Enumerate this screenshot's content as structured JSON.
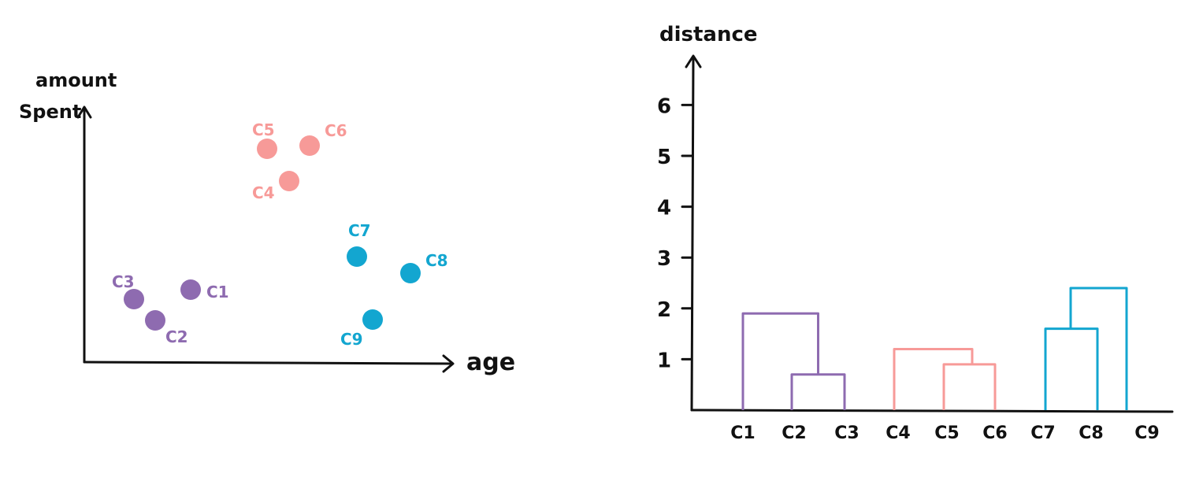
{
  "colors": {
    "purple": "#8E6BB0",
    "pink": "#F79A98",
    "cyan": "#13A6D0",
    "ink": "#111111"
  },
  "scatter": {
    "y_label_line1": "amount",
    "y_label_line2": "Spent",
    "x_label": "age",
    "points": [
      {
        "id": "c1",
        "label": "C1",
        "cluster": "purple"
      },
      {
        "id": "c2",
        "label": "C2",
        "cluster": "purple"
      },
      {
        "id": "c3",
        "label": "C3",
        "cluster": "purple"
      },
      {
        "id": "c4",
        "label": "C4",
        "cluster": "pink"
      },
      {
        "id": "c5",
        "label": "C5",
        "cluster": "pink"
      },
      {
        "id": "c6",
        "label": "C6",
        "cluster": "pink"
      },
      {
        "id": "c7",
        "label": "C7",
        "cluster": "cyan"
      },
      {
        "id": "c8",
        "label": "C8",
        "cluster": "cyan"
      },
      {
        "id": "c9",
        "label": "C9",
        "cluster": "cyan"
      }
    ]
  },
  "dendrogram": {
    "y_label": "distance",
    "y_ticks": [
      "1",
      "2",
      "3",
      "4",
      "5",
      "6"
    ],
    "leaves": [
      "C1",
      "C2",
      "C3",
      "C4",
      "C5",
      "C6",
      "C7",
      "C8",
      "C9"
    ],
    "merges": [
      {
        "id": "m23",
        "cluster": "purple",
        "height": 0.7
      },
      {
        "id": "m123",
        "cluster": "purple",
        "height": 1.9
      },
      {
        "id": "m56",
        "cluster": "pink",
        "height": 0.9
      },
      {
        "id": "m456",
        "cluster": "pink",
        "height": 1.2
      },
      {
        "id": "m78",
        "cluster": "cyan",
        "height": 1.6
      },
      {
        "id": "m789",
        "cluster": "cyan",
        "height": 2.4
      }
    ]
  }
}
